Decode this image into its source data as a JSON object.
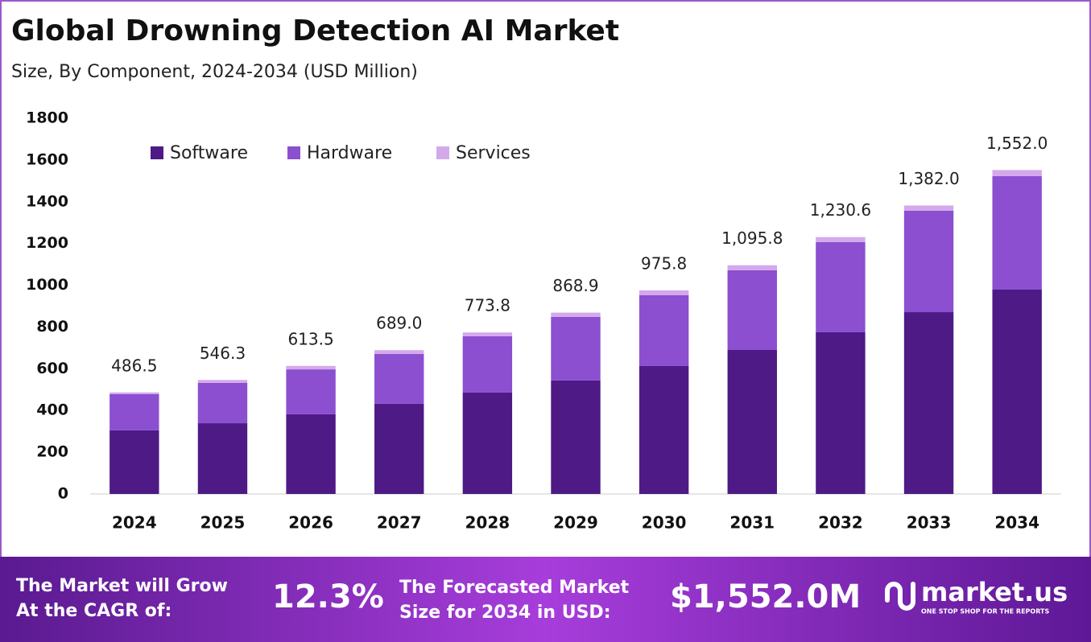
{
  "chart_data": {
    "type": "stacked-bar",
    "title": "Global Drowning Detection AI Market",
    "subtitle": "Size, By Component, 2024-2034 (USD Million)",
    "categories": [
      "2024",
      "2025",
      "2026",
      "2027",
      "2028",
      "2029",
      "2030",
      "2031",
      "2032",
      "2033",
      "2034"
    ],
    "series": [
      {
        "name": "Software",
        "color": "#4e1a86",
        "values": [
          305,
          339,
          382,
          432,
          486,
          544,
          613,
          690,
          775,
          871,
          979
        ]
      },
      {
        "name": "Hardware",
        "color": "#8b4fd0",
        "values": [
          173,
          193,
          215,
          239,
          270,
          304,
          339,
          382,
          432,
          486,
          544
        ]
      },
      {
        "name": "Services",
        "color": "#d4a9ec",
        "values": [
          8.5,
          14.3,
          16.5,
          18,
          17.8,
          20.9,
          23.8,
          23.8,
          23.6,
          25,
          29
        ]
      }
    ],
    "totals": [
      486.5,
      546.3,
      613.5,
      689.0,
      773.8,
      868.9,
      975.8,
      1095.8,
      1230.6,
      1382.0,
      1552.0
    ],
    "total_labels": [
      "486.5",
      "546.3",
      "613.5",
      "689.0",
      "773.8",
      "868.9",
      "975.8",
      "1,095.8",
      "1,230.6",
      "1,382.0",
      "1,552.0"
    ],
    "ylim": [
      0,
      1800
    ],
    "yticks": [
      0,
      200,
      400,
      600,
      800,
      1000,
      1200,
      1400,
      1600,
      1800
    ],
    "grid": false,
    "legend": "upper left"
  },
  "footer": {
    "cagr_text": [
      "The Market will Grow",
      "At the CAGR of:"
    ],
    "cagr_value": "12.3%",
    "forecast_text": [
      "The Forecasted Market",
      "Size for 2034 in USD:"
    ],
    "forecast_value": "$1,552.0M",
    "brand": "market.us",
    "tagline": "ONE STOP SHOP FOR THE REPORTS"
  }
}
